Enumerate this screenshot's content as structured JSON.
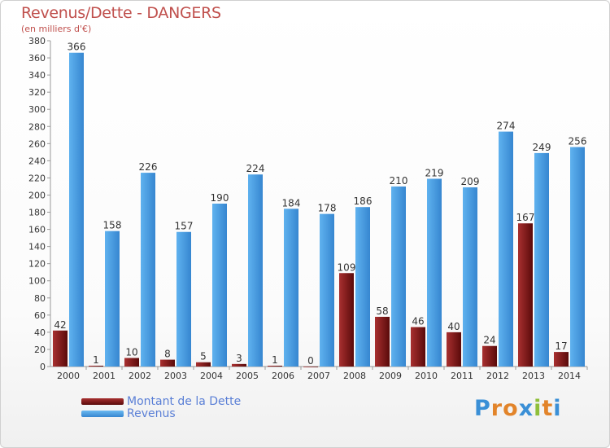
{
  "title": "Revenus/Dette - DANGERS",
  "subtitle": "(en milliers d'€)",
  "legend": {
    "debt_label": "Montant de la Dette",
    "revenue_label": "Revenus"
  },
  "logo": {
    "letters": [
      "P",
      "r",
      "o",
      "x",
      "i",
      "t",
      "i"
    ],
    "colors": [
      "#3a8fd6",
      "#e2842a",
      "#e2842a",
      "#3a8fd6",
      "#8fbf3a",
      "#e2842a",
      "#3a8fd6"
    ]
  },
  "colors": {
    "debt": "#8b1a1a",
    "revenue": "#4fa3e6",
    "text": "#333333",
    "title": "#c0504d"
  },
  "chart_data": {
    "type": "bar",
    "categories": [
      "2000",
      "2001",
      "2002",
      "2003",
      "2004",
      "2005",
      "2006",
      "2007",
      "2008",
      "2009",
      "2010",
      "2011",
      "2012",
      "2013",
      "2014"
    ],
    "series": [
      {
        "name": "Montant de la Dette",
        "values": [
          42,
          1,
          10,
          8,
          5,
          3,
          1,
          0,
          109,
          58,
          46,
          40,
          24,
          167,
          17
        ]
      },
      {
        "name": "Revenus",
        "values": [
          366,
          158,
          226,
          157,
          190,
          224,
          184,
          178,
          186,
          210,
          219,
          209,
          274,
          249,
          256
        ]
      }
    ],
    "ylim": [
      0,
      380
    ],
    "ytick_step": 20,
    "grid": false,
    "legend_position": "bottom-left"
  }
}
